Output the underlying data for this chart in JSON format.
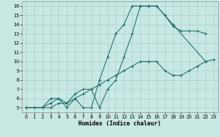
{
  "xlabel": "Humidex (Indice chaleur)",
  "xlim": [
    -0.5,
    23.5
  ],
  "ylim": [
    4.5,
    16.5
  ],
  "xticks": [
    0,
    1,
    2,
    3,
    4,
    5,
    6,
    7,
    8,
    9,
    10,
    11,
    12,
    13,
    14,
    15,
    16,
    17,
    18,
    19,
    20,
    21,
    22,
    23
  ],
  "yticks": [
    5,
    6,
    7,
    8,
    9,
    10,
    11,
    12,
    13,
    14,
    15,
    16
  ],
  "background_color": "#c8e8e4",
  "grid_color": "#a8ccc8",
  "line_color": "#1e6e6a",
  "line1_x": [
    0,
    1,
    2,
    3,
    4,
    5,
    6,
    7,
    8,
    9,
    10,
    11,
    12,
    13,
    14,
    15,
    16,
    17,
    18,
    22
  ],
  "line1_y": [
    5,
    5,
    5,
    6,
    6,
    5.5,
    6.5,
    7,
    7,
    5,
    7,
    8,
    10.5,
    13,
    16,
    16,
    16,
    15,
    14,
    10
  ],
  "line2_x": [
    0,
    2,
    3,
    4,
    5,
    6,
    7,
    8,
    9,
    10,
    11,
    12,
    13,
    14,
    15,
    16,
    17,
    18,
    19,
    20,
    21,
    22
  ],
  "line2_y": [
    5,
    5,
    5.5,
    6,
    5,
    6,
    5,
    5,
    8,
    10.5,
    13,
    14,
    16,
    16,
    16,
    16,
    15,
    13.8,
    13.3,
    13.3,
    13.3,
    13
  ],
  "line3_x": [
    0,
    1,
    2,
    3,
    4,
    5,
    6,
    7,
    8,
    9,
    10,
    11,
    12,
    13,
    14,
    15,
    16,
    17,
    18,
    19,
    20,
    21,
    22,
    23
  ],
  "line3_y": [
    5,
    5,
    5,
    5,
    5.5,
    5.5,
    6,
    6.5,
    7,
    7.5,
    8,
    8.5,
    9,
    9.5,
    10,
    10,
    10,
    9,
    8.5,
    8.5,
    9,
    9.5,
    10,
    10.2
  ]
}
